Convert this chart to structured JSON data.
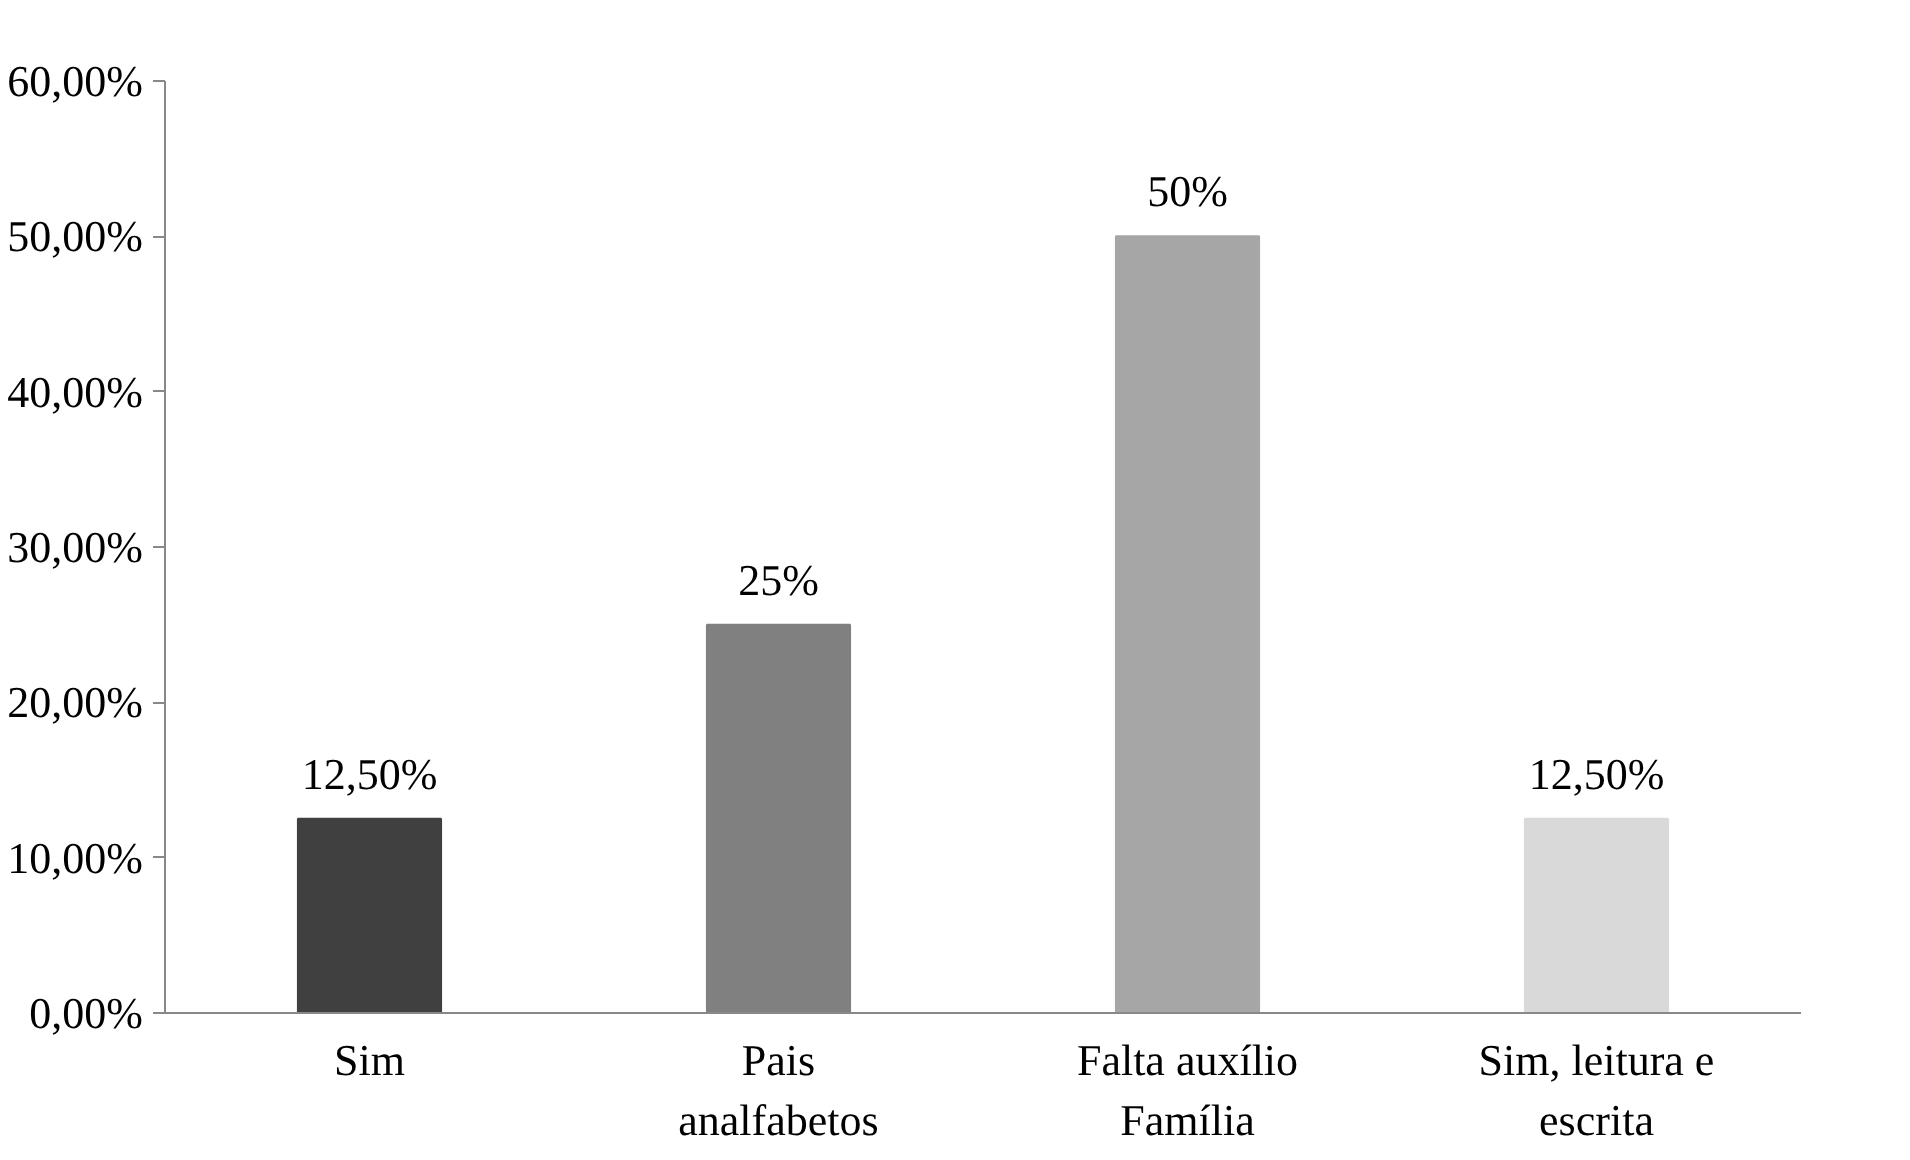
{
  "chart_data": {
    "type": "bar",
    "categories": [
      "Sim",
      "Pais analfabetos",
      "Falta auxílio Família",
      "Sim, leitura e escrita"
    ],
    "values": [
      12.5,
      25,
      50,
      12.5
    ],
    "colors": [
      "#404040",
      "#808080",
      "#a6a6a6",
      "#d9d9d9"
    ],
    "value_labels": [
      "12,50%",
      "25%",
      "50%",
      "12,50%"
    ],
    "ylim": [
      0,
      60
    ],
    "yticks": [
      {
        "value": 0,
        "label": "0,00%"
      },
      {
        "value": 10,
        "label": "10,00%"
      },
      {
        "value": 20,
        "label": "20,00%"
      },
      {
        "value": 30,
        "label": "30,00%"
      },
      {
        "value": 40,
        "label": "40,00%"
      },
      {
        "value": 50,
        "label": "50,00%"
      },
      {
        "value": 60,
        "label": "60,00%"
      }
    ],
    "grid": false
  }
}
